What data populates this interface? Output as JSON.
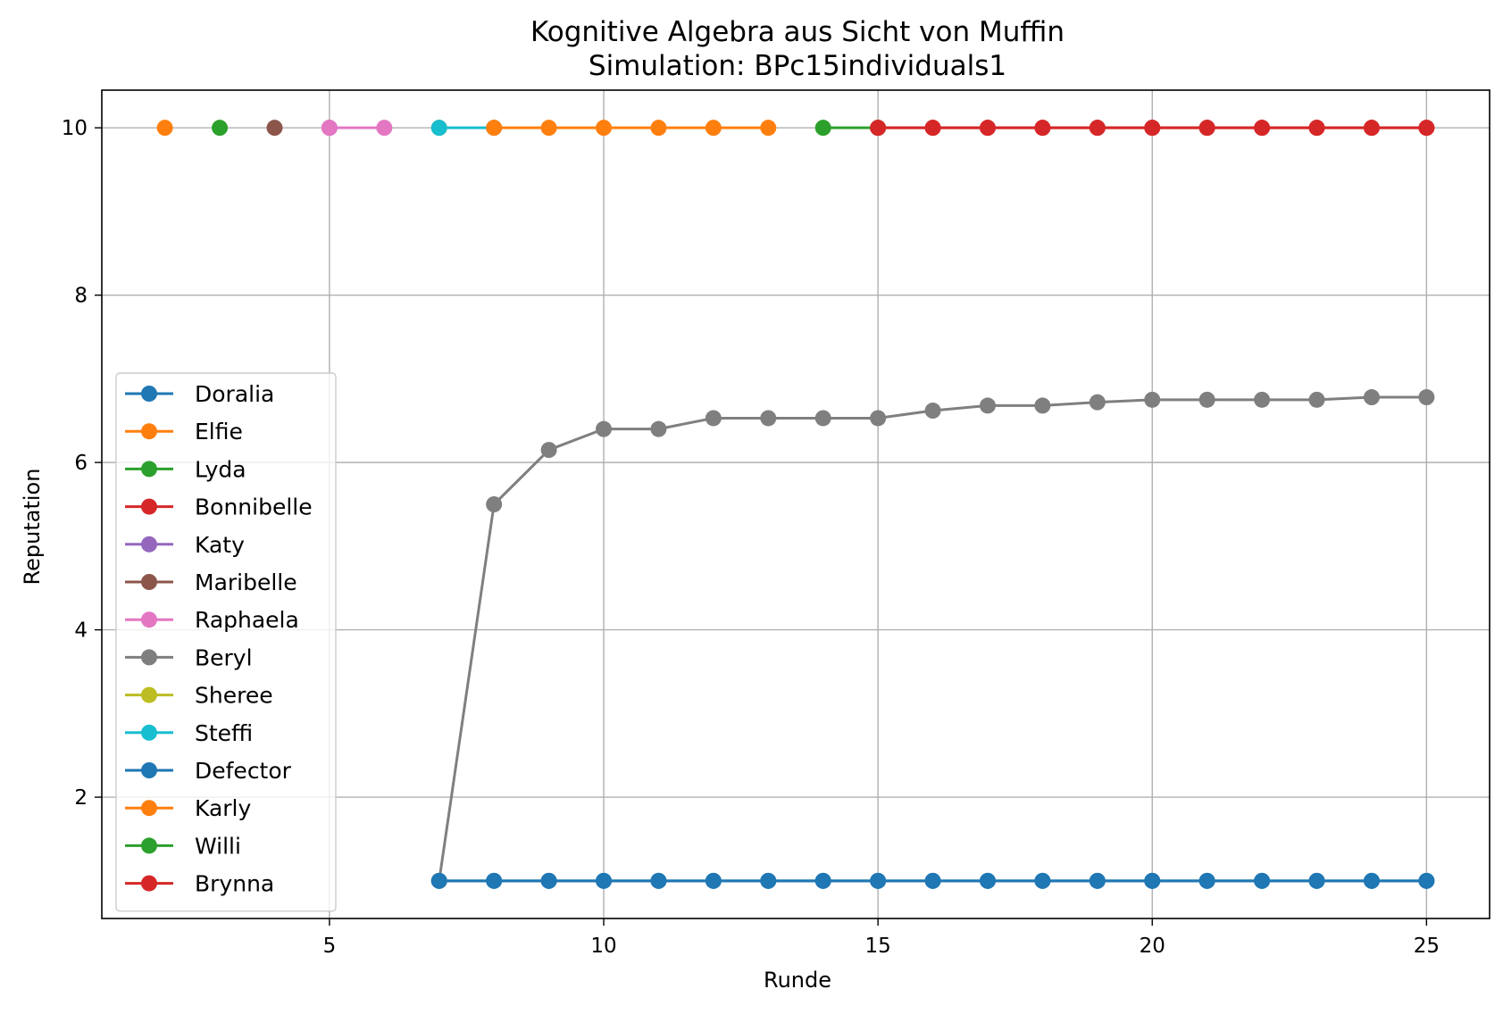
{
  "chart_data": {
    "type": "line",
    "title": "Kognitive Algebra aus Sicht von Muffin",
    "subtitle": "Simulation: BPc15individuals1",
    "xlabel": "Runde",
    "ylabel": "Reputation",
    "xlim": [
      0.85,
      26.15
    ],
    "ylim": [
      0.55,
      10.45
    ],
    "xticks": [
      5,
      10,
      15,
      20,
      25
    ],
    "yticks": [
      2,
      4,
      6,
      8,
      10
    ],
    "grid": true,
    "legend_position": "lower-left",
    "series": [
      {
        "name": "Doralia",
        "color": "#1f77b4",
        "x": [
          7,
          8,
          9,
          10,
          11,
          12,
          13,
          14,
          15,
          16,
          17,
          18,
          19,
          20,
          21,
          22,
          23,
          24,
          25
        ],
        "values": [
          1,
          1,
          1,
          1,
          1,
          1,
          1,
          1,
          1,
          1,
          1,
          1,
          1,
          1,
          1,
          1,
          1,
          1,
          1
        ]
      },
      {
        "name": "Elfie",
        "color": "#ff7f0e",
        "x": [
          2
        ],
        "values": [
          10
        ]
      },
      {
        "name": "Lyda",
        "color": "#2ca02c",
        "x": [
          3
        ],
        "values": [
          10
        ]
      },
      {
        "name": "Bonnibelle",
        "color": "#d62728",
        "x": [
          15,
          16,
          17,
          18,
          19,
          20,
          21,
          22,
          23,
          24,
          25
        ],
        "values": [
          10,
          10,
          10,
          10,
          10,
          10,
          10,
          10,
          10,
          10,
          10
        ]
      },
      {
        "name": "Katy",
        "color": "#9467bd",
        "x": [
          5
        ],
        "values": [
          10
        ]
      },
      {
        "name": "Maribelle",
        "color": "#8c564b",
        "x": [
          4
        ],
        "values": [
          10
        ]
      },
      {
        "name": "Raphaela",
        "color": "#e377c2",
        "x": [
          5,
          6
        ],
        "values": [
          10,
          10
        ]
      },
      {
        "name": "Beryl",
        "color": "#7f7f7f",
        "x": [
          7,
          8,
          9,
          10,
          11,
          12,
          13,
          14,
          15,
          16,
          17,
          18,
          19,
          20,
          21,
          22,
          23,
          24,
          25
        ],
        "values": [
          1,
          5.5,
          6.15,
          6.4,
          6.4,
          6.53,
          6.53,
          6.53,
          6.53,
          6.62,
          6.68,
          6.68,
          6.72,
          6.75,
          6.75,
          6.75,
          6.75,
          6.78,
          6.78
        ]
      },
      {
        "name": "Sheree",
        "color": "#bcbd22",
        "x": [
          7
        ],
        "values": [
          10
        ]
      },
      {
        "name": "Steffi",
        "color": "#17becf",
        "x": [
          7,
          8
        ],
        "values": [
          10,
          10
        ]
      },
      {
        "name": "Defector",
        "color": "#1f77b4",
        "x": [
          7,
          8,
          9,
          10,
          11,
          12,
          13,
          14,
          15,
          16,
          17,
          18,
          19,
          20,
          21,
          22,
          23,
          24,
          25
        ],
        "values": [
          1,
          1,
          1,
          1,
          1,
          1,
          1,
          1,
          1,
          1,
          1,
          1,
          1,
          1,
          1,
          1,
          1,
          1,
          1
        ]
      },
      {
        "name": "Karly",
        "color": "#ff7f0e",
        "x": [
          8,
          9,
          10,
          11,
          12,
          13
        ],
        "values": [
          10,
          10,
          10,
          10,
          10,
          10
        ]
      },
      {
        "name": "Willi",
        "color": "#2ca02c",
        "x": [
          14,
          15
        ],
        "values": [
          10,
          10
        ]
      },
      {
        "name": "Brynna",
        "color": "#d62728",
        "x": [
          15,
          16,
          17,
          18,
          19,
          20,
          21,
          22,
          23,
          24,
          25
        ],
        "values": [
          10,
          10,
          10,
          10,
          10,
          10,
          10,
          10,
          10,
          10,
          10
        ]
      }
    ]
  }
}
